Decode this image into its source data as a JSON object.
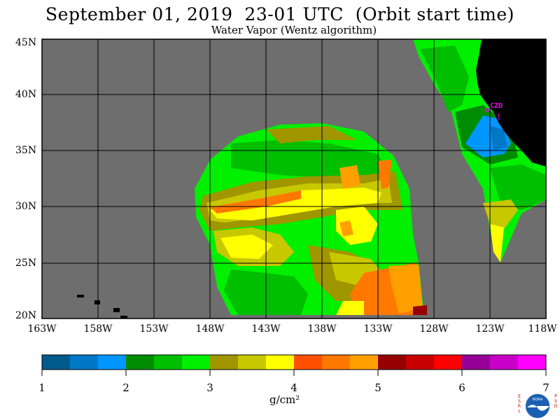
{
  "header": {
    "title": "September 01, 2019  23-01 UTC  (Orbit start time)",
    "subtitle": "Water Vapor (Wentz algorithm)"
  },
  "map": {
    "latitude_labels": [
      "45N",
      "40N",
      "35N",
      "30N",
      "25N",
      "20N"
    ],
    "longitude_labels": [
      "163W",
      "158W",
      "153W",
      "148W",
      "143W",
      "138W",
      "133W",
      "128W",
      "123W",
      "118W"
    ],
    "station_label": "CZD",
    "colors": {
      "no_data": "#6e6e6e",
      "land": "#000000",
      "grid": "#000000",
      "station": "#ff00ff"
    }
  },
  "colorbar": {
    "tick_labels": [
      "1",
      "2",
      "3",
      "4",
      "5",
      "6",
      "7"
    ],
    "unit": "g/cm²",
    "colors": [
      "#005a8c",
      "#0078c8",
      "#0096ff",
      "#008c00",
      "#00be00",
      "#00f000",
      "#a09600",
      "#c8c800",
      "#ffff00",
      "#ff5000",
      "#ff7800",
      "#ffa000",
      "#960000",
      "#c80000",
      "#ff0000",
      "#960096",
      "#c800c8",
      "#ff00ff"
    ]
  },
  "logo": {
    "left_text": "ESRL",
    "right_text": "PSD",
    "center_text": "NOAA"
  }
}
